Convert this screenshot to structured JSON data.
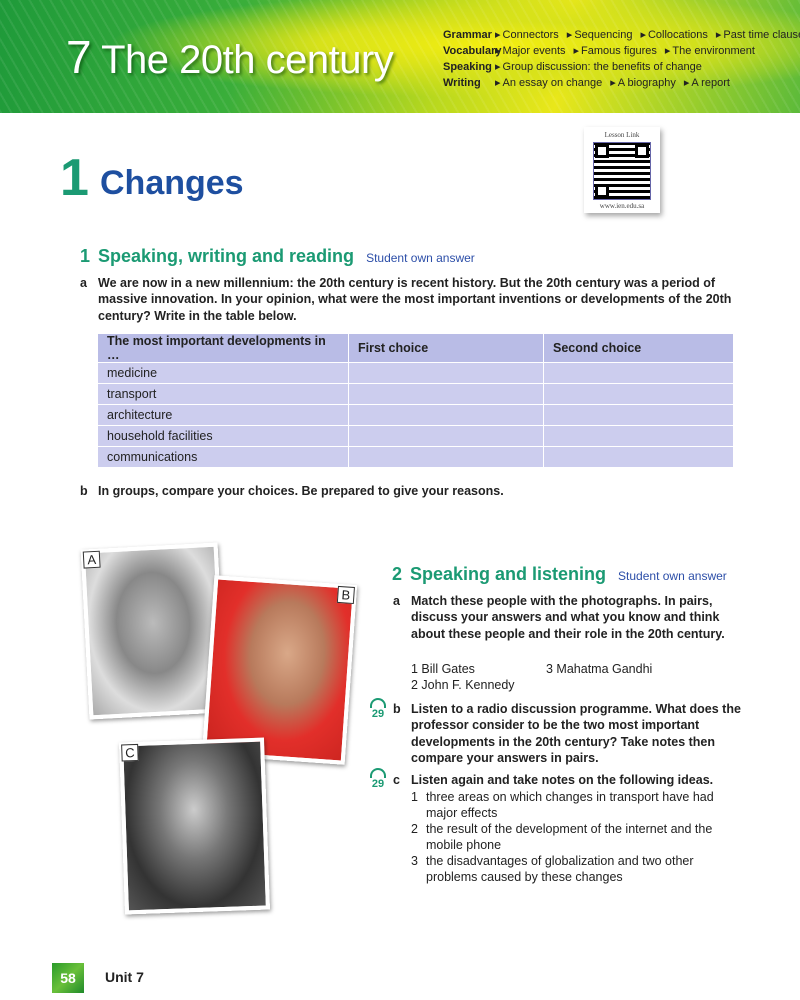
{
  "banner": {
    "unit_number": "7",
    "unit_title": "The 20th century",
    "syllabus": [
      {
        "label": "Grammar",
        "items": [
          "Connectors",
          "Sequencing",
          "Collocations",
          "Past time clauses"
        ]
      },
      {
        "label": "Vocabulary",
        "items": [
          "Major events",
          "Famous figures",
          "The environment"
        ]
      },
      {
        "label": "Speaking",
        "items": [
          "Group discussion: the benefits of change"
        ]
      },
      {
        "label": "Writing",
        "items": [
          "An essay on change",
          "A biography",
          "A report"
        ]
      }
    ]
  },
  "qr": {
    "title": "Lesson Link",
    "url": "www.ien.edu.sa"
  },
  "lesson": {
    "number": "1",
    "title": "Changes"
  },
  "ex1": {
    "number": "1",
    "title": "Speaking, writing and reading",
    "note": "Student own answer",
    "a_letter": "a",
    "a_text": "We are now in a new millennium: the 20th century is recent history. But the 20th century was a period of massive innovation. In your opinion, what were the most important inventions or developments of the 20th century? Write in the table below.",
    "table": {
      "headers": [
        "The most important developments in …",
        "First choice",
        "Second choice"
      ],
      "rows": [
        "medicine",
        "transport",
        "architecture",
        "household facilities",
        "communications"
      ]
    },
    "b_letter": "b",
    "b_text": "In groups, compare your choices. Be prepared to give your reasons."
  },
  "photos": {
    "a": "A",
    "b": "B",
    "c": "C"
  },
  "ex2": {
    "number": "2",
    "title": "Speaking and listening",
    "note": "Student own answer",
    "a_letter": "a",
    "a_text": "Match these people with the photographs. In pairs, discuss your answers and what you know and think about these people and their role in the 20th century.",
    "people": [
      "1  Bill Gates",
      "3  Mahatma Gandhi",
      "2  John F. Kennedy"
    ],
    "b_letter": "b",
    "b_track": "29",
    "b_text": "Listen to a radio discussion programme. What does the professor consider to be the two most important developments in the 20th century? Take notes then compare your answers in pairs.",
    "c_letter": "c",
    "c_track": "29",
    "c_text": "Listen again and take notes on the following ideas.",
    "c_items": [
      {
        "n": "1",
        "text": "three areas on which changes in transport have had major effects"
      },
      {
        "n": "2",
        "text": "the result of the development of the internet and the mobile phone"
      },
      {
        "n": "3",
        "text": "the disadvantages of globalization and two other problems caused by these changes"
      }
    ]
  },
  "footer": {
    "page": "58",
    "unit": "Unit 7"
  },
  "colors": {
    "green_heading": "#1b9a73",
    "blue_title": "#1e4fa0",
    "table_fill": "#cccdee"
  }
}
